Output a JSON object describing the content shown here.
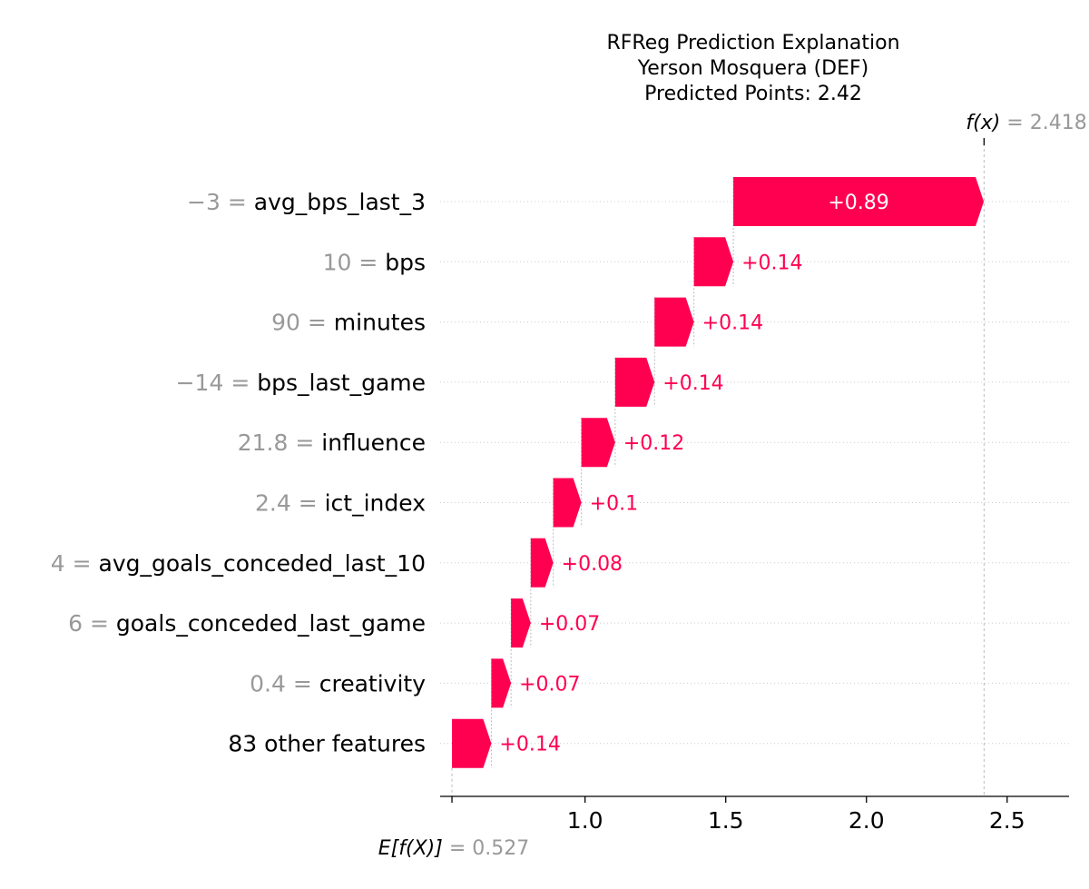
{
  "chart_data": {
    "type": "waterfall",
    "title_lines": [
      "RFReg Prediction Explanation",
      "Yerson Mosquera (DEF)",
      "Predicted Points: 2.42"
    ],
    "base_value": 0.527,
    "base_label": "E[f(X)]",
    "base_value_text": "= 0.527",
    "final_value": 2.418,
    "final_label": "f(x)",
    "final_value_text": "= 2.418",
    "xlim": [
      0.485,
      2.72
    ],
    "xticks": [
      1.0,
      1.5,
      2.0,
      2.5
    ],
    "xtick_labels": [
      "1.0",
      "1.5",
      "2.0",
      "2.5"
    ],
    "features": [
      {
        "value_text": "−3 =",
        "name": "avg_bps_last_3",
        "contribution": 0.89,
        "label": "+0.89"
      },
      {
        "value_text": "10 =",
        "name": "bps",
        "contribution": 0.14,
        "label": "+0.14"
      },
      {
        "value_text": "90 =",
        "name": "minutes",
        "contribution": 0.14,
        "label": "+0.14"
      },
      {
        "value_text": "−14 =",
        "name": "bps_last_game",
        "contribution": 0.14,
        "label": "+0.14"
      },
      {
        "value_text": "21.8 =",
        "name": "influence",
        "contribution": 0.12,
        "label": "+0.12"
      },
      {
        "value_text": "2.4 =",
        "name": "ict_index",
        "contribution": 0.1,
        "label": "+0.1"
      },
      {
        "value_text": "4 =",
        "name": "avg_goals_conceded_last_10",
        "contribution": 0.08,
        "label": "+0.08"
      },
      {
        "value_text": "6 =",
        "name": "goals_conceded_last_game",
        "contribution": 0.07,
        "label": "+0.07"
      },
      {
        "value_text": "0.4 =",
        "name": "creativity",
        "contribution": 0.07,
        "label": "+0.07"
      },
      {
        "value_text": "",
        "name": "83 other features",
        "contribution": 0.14,
        "label": "+0.14"
      }
    ],
    "colors": {
      "positive": "#ff0051",
      "muted": "#999999",
      "text": "#000000"
    }
  }
}
